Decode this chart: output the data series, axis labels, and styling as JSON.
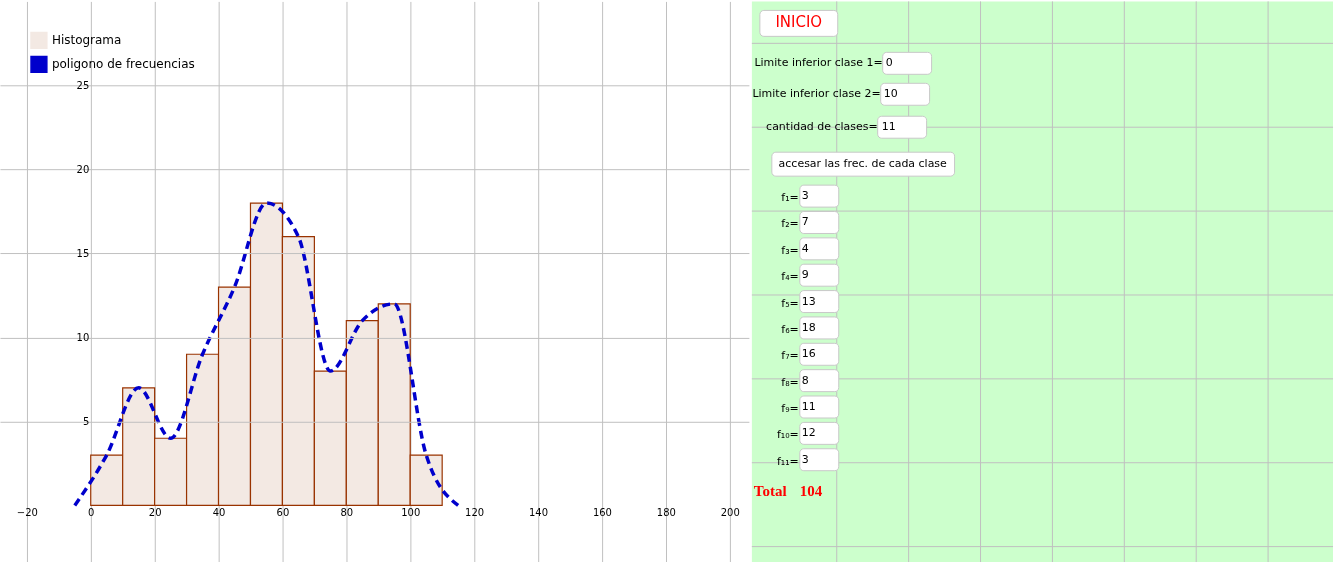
{
  "chart_data": [
    {
      "type": "histogram",
      "xlim": [
        -28.4,
        206
      ],
      "ylim": [
        -3.4,
        30
      ],
      "xticks": [
        -20,
        0,
        20,
        40,
        60,
        80,
        100,
        120,
        140,
        160,
        180,
        200
      ],
      "yticks": [
        5,
        10,
        15,
        20,
        25
      ],
      "grid": true,
      "legend": "top left",
      "series": [
        {
          "type": "histogram",
          "name": "Histograma",
          "color": "#f3e9e3",
          "bins": [
            0,
            10,
            20,
            30,
            40,
            50,
            60,
            70,
            80,
            90,
            100,
            110
          ],
          "values": [
            3,
            7,
            4,
            9,
            13,
            18,
            16,
            8,
            11,
            12,
            3
          ]
        },
        {
          "type": "line",
          "name": "poligono de frecuencias",
          "color": "#0000cc",
          "line_style": "dashed",
          "x": [
            -5,
            5,
            15,
            25,
            35,
            45,
            55,
            65,
            75,
            85,
            95,
            105,
            115
          ],
          "values": [
            0,
            3,
            7,
            4,
            9,
            13,
            18,
            16,
            8,
            11,
            12,
            3,
            0
          ]
        }
      ]
    },
    {
      "type": "other",
      "annotations": [
        "INICIO",
        "Limite inferior clase 1=",
        "0",
        "Limite inferior clase 2=",
        "10",
        "cantidad de clases=",
        "11",
        "accesar las frec. de cada clase",
        "f₁=",
        "3",
        "f₂=",
        "7",
        "f₃=",
        "4",
        "f₄=",
        "9",
        "f₅=",
        "13",
        "f₆=",
        "18",
        "f₇=",
        "16",
        "f₈=",
        "8",
        "f₉=",
        "11",
        "f₁₀=",
        "12",
        "f₁₁=",
        "3",
        "Total",
        "104"
      ]
    }
  ]
}
